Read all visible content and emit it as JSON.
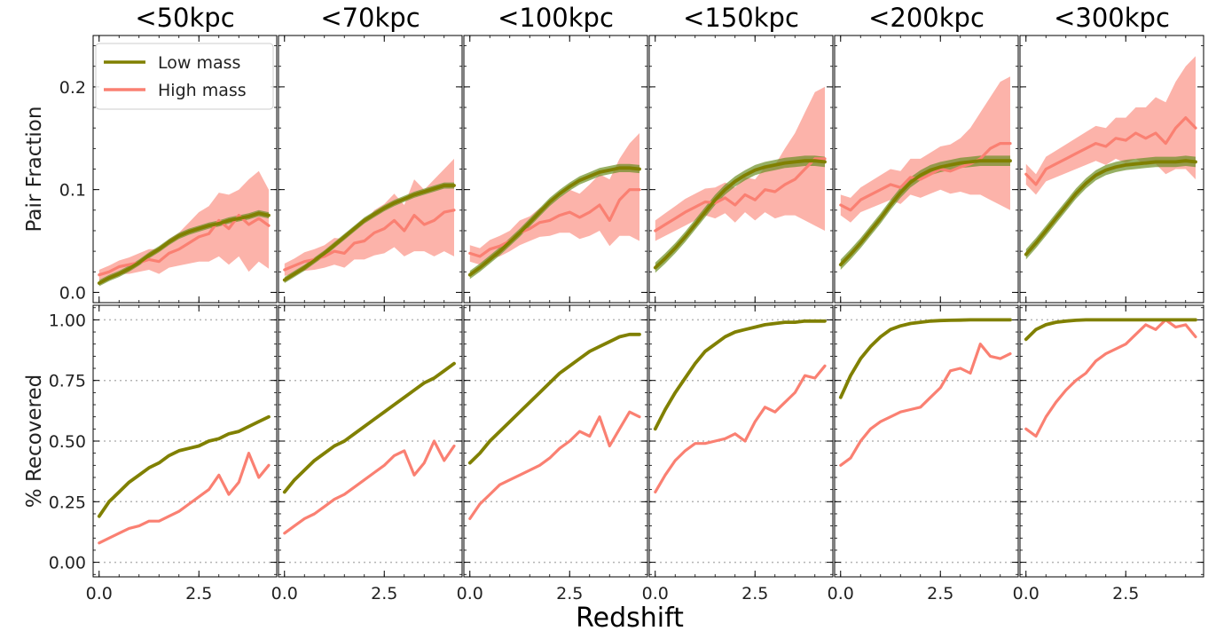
{
  "figure": {
    "xlabel": "Redshift",
    "legend": {
      "placement": "top-left of first panel"
    }
  },
  "chart_data": {
    "type": "line",
    "columns": [
      "<50kpc",
      "<70kpc",
      "<100kpc",
      "<150kpc",
      "<200kpc",
      "<300kpc"
    ],
    "series_styles": [
      {
        "name": "Low mass",
        "color": "#808000",
        "band_color": "#6b8e23"
      },
      {
        "name": "High mass",
        "color": "#fa8072",
        "band_color": "#fa8072"
      }
    ],
    "x": [
      0.0,
      0.25,
      0.5,
      0.75,
      1.0,
      1.25,
      1.5,
      1.75,
      2.0,
      2.25,
      2.5,
      2.75,
      3.0,
      3.25,
      3.5,
      3.75,
      4.0,
      4.25
    ],
    "xlim": [
      -0.15,
      4.45
    ],
    "xticks": [
      0.0,
      2.5
    ],
    "xtick_labels": [
      "0.0",
      "2.5"
    ],
    "top": {
      "ylabel": "Pair Fraction",
      "ylim": [
        -0.01,
        0.25
      ],
      "yticks": [
        0.0,
        0.1,
        0.2
      ],
      "ytick_labels": [
        "0.0",
        "0.1",
        "0.2"
      ],
      "panels": [
        {
          "low": [
            0.009,
            0.014,
            0.018,
            0.023,
            0.029,
            0.036,
            0.042,
            0.049,
            0.055,
            0.059,
            0.062,
            0.065,
            0.067,
            0.07,
            0.072,
            0.074,
            0.077,
            0.075
          ],
          "low_band": 0.003,
          "high": [
            0.017,
            0.02,
            0.025,
            0.027,
            0.029,
            0.032,
            0.03,
            0.038,
            0.042,
            0.048,
            0.054,
            0.057,
            0.07,
            0.062,
            0.075,
            0.066,
            0.072,
            0.065
          ],
          "high_lo": [
            0.012,
            0.014,
            0.018,
            0.018,
            0.02,
            0.022,
            0.018,
            0.024,
            0.026,
            0.028,
            0.03,
            0.03,
            0.035,
            0.027,
            0.035,
            0.02,
            0.03,
            0.023
          ],
          "high_hi": [
            0.022,
            0.026,
            0.031,
            0.034,
            0.038,
            0.042,
            0.042,
            0.052,
            0.058,
            0.068,
            0.078,
            0.084,
            0.097,
            0.095,
            0.1,
            0.11,
            0.118,
            0.1
          ]
        },
        {
          "low": [
            0.012,
            0.018,
            0.024,
            0.031,
            0.038,
            0.046,
            0.054,
            0.062,
            0.07,
            0.076,
            0.082,
            0.087,
            0.091,
            0.095,
            0.098,
            0.101,
            0.104,
            0.104
          ],
          "low_band": 0.003,
          "high": [
            0.022,
            0.026,
            0.03,
            0.032,
            0.035,
            0.04,
            0.038,
            0.048,
            0.05,
            0.058,
            0.062,
            0.07,
            0.06,
            0.075,
            0.066,
            0.07,
            0.078,
            0.08
          ],
          "high_lo": [
            0.016,
            0.018,
            0.021,
            0.022,
            0.024,
            0.027,
            0.024,
            0.032,
            0.032,
            0.036,
            0.038,
            0.044,
            0.035,
            0.04,
            0.04,
            0.035,
            0.04,
            0.035
          ],
          "high_hi": [
            0.028,
            0.033,
            0.039,
            0.042,
            0.046,
            0.053,
            0.052,
            0.064,
            0.068,
            0.08,
            0.086,
            0.096,
            0.085,
            0.11,
            0.1,
            0.11,
            0.12,
            0.13
          ]
        },
        {
          "low": [
            0.017,
            0.024,
            0.032,
            0.04,
            0.049,
            0.058,
            0.068,
            0.078,
            0.088,
            0.096,
            0.103,
            0.109,
            0.113,
            0.117,
            0.119,
            0.121,
            0.121,
            0.12
          ],
          "low_band": 0.004,
          "high": [
            0.038,
            0.035,
            0.042,
            0.045,
            0.05,
            0.058,
            0.062,
            0.068,
            0.07,
            0.075,
            0.078,
            0.073,
            0.078,
            0.085,
            0.07,
            0.09,
            0.1,
            0.1
          ],
          "high_lo": [
            0.03,
            0.027,
            0.033,
            0.035,
            0.04,
            0.046,
            0.05,
            0.054,
            0.055,
            0.058,
            0.058,
            0.052,
            0.055,
            0.06,
            0.045,
            0.055,
            0.055,
            0.05
          ],
          "high_hi": [
            0.046,
            0.043,
            0.051,
            0.055,
            0.06,
            0.07,
            0.074,
            0.082,
            0.086,
            0.093,
            0.1,
            0.096,
            0.105,
            0.115,
            0.11,
            0.13,
            0.145,
            0.155
          ]
        },
        {
          "low": [
            0.024,
            0.033,
            0.043,
            0.054,
            0.066,
            0.078,
            0.09,
            0.1,
            0.108,
            0.114,
            0.119,
            0.122,
            0.124,
            0.126,
            0.127,
            0.128,
            0.128,
            0.127
          ],
          "low_band": 0.005,
          "high": [
            0.06,
            0.066,
            0.072,
            0.078,
            0.083,
            0.088,
            0.087,
            0.092,
            0.085,
            0.095,
            0.09,
            0.1,
            0.098,
            0.105,
            0.11,
            0.12,
            0.13,
            0.13
          ],
          "high_lo": [
            0.05,
            0.055,
            0.06,
            0.065,
            0.07,
            0.075,
            0.072,
            0.077,
            0.068,
            0.078,
            0.07,
            0.078,
            0.072,
            0.075,
            0.075,
            0.07,
            0.065,
            0.06
          ],
          "high_hi": [
            0.07,
            0.077,
            0.084,
            0.091,
            0.096,
            0.101,
            0.102,
            0.107,
            0.102,
            0.112,
            0.11,
            0.122,
            0.124,
            0.14,
            0.155,
            0.175,
            0.195,
            0.2
          ]
        },
        {
          "low": [
            0.027,
            0.037,
            0.048,
            0.06,
            0.072,
            0.085,
            0.097,
            0.107,
            0.114,
            0.119,
            0.122,
            0.124,
            0.126,
            0.127,
            0.128,
            0.128,
            0.128,
            0.128
          ],
          "low_band": 0.005,
          "high": [
            0.085,
            0.08,
            0.09,
            0.095,
            0.1,
            0.105,
            0.102,
            0.112,
            0.11,
            0.115,
            0.12,
            0.118,
            0.122,
            0.125,
            0.13,
            0.14,
            0.145,
            0.145
          ],
          "high_lo": [
            0.075,
            0.068,
            0.078,
            0.082,
            0.086,
            0.09,
            0.086,
            0.095,
            0.092,
            0.096,
            0.1,
            0.096,
            0.098,
            0.095,
            0.095,
            0.09,
            0.085,
            0.08
          ],
          "high_hi": [
            0.095,
            0.092,
            0.102,
            0.108,
            0.114,
            0.12,
            0.118,
            0.13,
            0.13,
            0.136,
            0.142,
            0.144,
            0.15,
            0.16,
            0.175,
            0.19,
            0.205,
            0.21
          ]
        },
        {
          "low": [
            0.037,
            0.048,
            0.06,
            0.072,
            0.084,
            0.096,
            0.106,
            0.114,
            0.119,
            0.122,
            0.124,
            0.125,
            0.126,
            0.127,
            0.127,
            0.127,
            0.128,
            0.127
          ],
          "low_band": 0.005,
          "high": [
            0.115,
            0.105,
            0.12,
            0.125,
            0.13,
            0.135,
            0.14,
            0.145,
            0.142,
            0.15,
            0.148,
            0.155,
            0.15,
            0.155,
            0.145,
            0.16,
            0.17,
            0.16
          ],
          "high_lo": [
            0.105,
            0.095,
            0.108,
            0.112,
            0.116,
            0.12,
            0.124,
            0.128,
            0.124,
            0.13,
            0.126,
            0.13,
            0.124,
            0.125,
            0.115,
            0.12,
            0.12,
            0.11
          ],
          "high_hi": [
            0.125,
            0.115,
            0.132,
            0.138,
            0.144,
            0.15,
            0.156,
            0.162,
            0.16,
            0.17,
            0.17,
            0.18,
            0.18,
            0.19,
            0.185,
            0.205,
            0.22,
            0.23
          ]
        }
      ]
    },
    "bottom": {
      "ylabel": "% Recovered",
      "ylim": [
        -0.06,
        1.06
      ],
      "yticks": [
        0.0,
        0.25,
        0.5,
        0.75,
        1.0
      ],
      "ytick_labels": [
        "0.00",
        "0.25",
        "0.50",
        "0.75",
        "1.00"
      ],
      "grid": "dotted horizontal",
      "panels": [
        {
          "low": [
            0.19,
            0.25,
            0.29,
            0.33,
            0.36,
            0.39,
            0.41,
            0.44,
            0.46,
            0.47,
            0.48,
            0.5,
            0.51,
            0.53,
            0.54,
            0.56,
            0.58,
            0.6
          ],
          "high": [
            0.08,
            0.1,
            0.12,
            0.14,
            0.15,
            0.17,
            0.17,
            0.19,
            0.21,
            0.24,
            0.27,
            0.3,
            0.36,
            0.28,
            0.33,
            0.45,
            0.35,
            0.4
          ]
        },
        {
          "low": [
            0.29,
            0.34,
            0.38,
            0.42,
            0.45,
            0.48,
            0.5,
            0.53,
            0.56,
            0.59,
            0.62,
            0.65,
            0.68,
            0.71,
            0.74,
            0.76,
            0.79,
            0.82
          ],
          "high": [
            0.12,
            0.15,
            0.18,
            0.2,
            0.23,
            0.26,
            0.28,
            0.31,
            0.34,
            0.37,
            0.4,
            0.44,
            0.46,
            0.36,
            0.41,
            0.5,
            0.42,
            0.48
          ]
        },
        {
          "low": [
            0.41,
            0.45,
            0.5,
            0.54,
            0.58,
            0.62,
            0.66,
            0.7,
            0.74,
            0.78,
            0.81,
            0.84,
            0.87,
            0.89,
            0.91,
            0.93,
            0.94,
            0.94
          ],
          "high": [
            0.18,
            0.24,
            0.28,
            0.32,
            0.34,
            0.36,
            0.38,
            0.4,
            0.43,
            0.47,
            0.5,
            0.54,
            0.52,
            0.6,
            0.48,
            0.55,
            0.62,
            0.6
          ]
        },
        {
          "low": [
            0.55,
            0.63,
            0.7,
            0.76,
            0.82,
            0.87,
            0.9,
            0.93,
            0.95,
            0.96,
            0.97,
            0.98,
            0.985,
            0.99,
            0.99,
            0.995,
            0.995,
            0.995
          ],
          "high": [
            0.29,
            0.36,
            0.42,
            0.46,
            0.49,
            0.49,
            0.5,
            0.51,
            0.53,
            0.5,
            0.58,
            0.64,
            0.62,
            0.66,
            0.7,
            0.77,
            0.76,
            0.81
          ]
        },
        {
          "low": [
            0.68,
            0.77,
            0.84,
            0.89,
            0.93,
            0.96,
            0.975,
            0.985,
            0.99,
            0.995,
            0.997,
            0.998,
            0.999,
            1.0,
            1.0,
            1.0,
            1.0,
            1.0
          ],
          "high": [
            0.4,
            0.43,
            0.5,
            0.55,
            0.58,
            0.6,
            0.62,
            0.63,
            0.64,
            0.68,
            0.72,
            0.79,
            0.8,
            0.78,
            0.9,
            0.85,
            0.84,
            0.86
          ]
        },
        {
          "low": [
            0.92,
            0.96,
            0.98,
            0.99,
            0.995,
            0.998,
            1.0,
            1.0,
            1.0,
            1.0,
            1.0,
            1.0,
            1.0,
            1.0,
            1.0,
            1.0,
            1.0,
            1.0
          ],
          "high": [
            0.55,
            0.52,
            0.6,
            0.66,
            0.71,
            0.75,
            0.78,
            0.83,
            0.86,
            0.88,
            0.9,
            0.94,
            0.98,
            0.96,
            1.0,
            0.97,
            0.98,
            0.93
          ]
        }
      ]
    }
  }
}
